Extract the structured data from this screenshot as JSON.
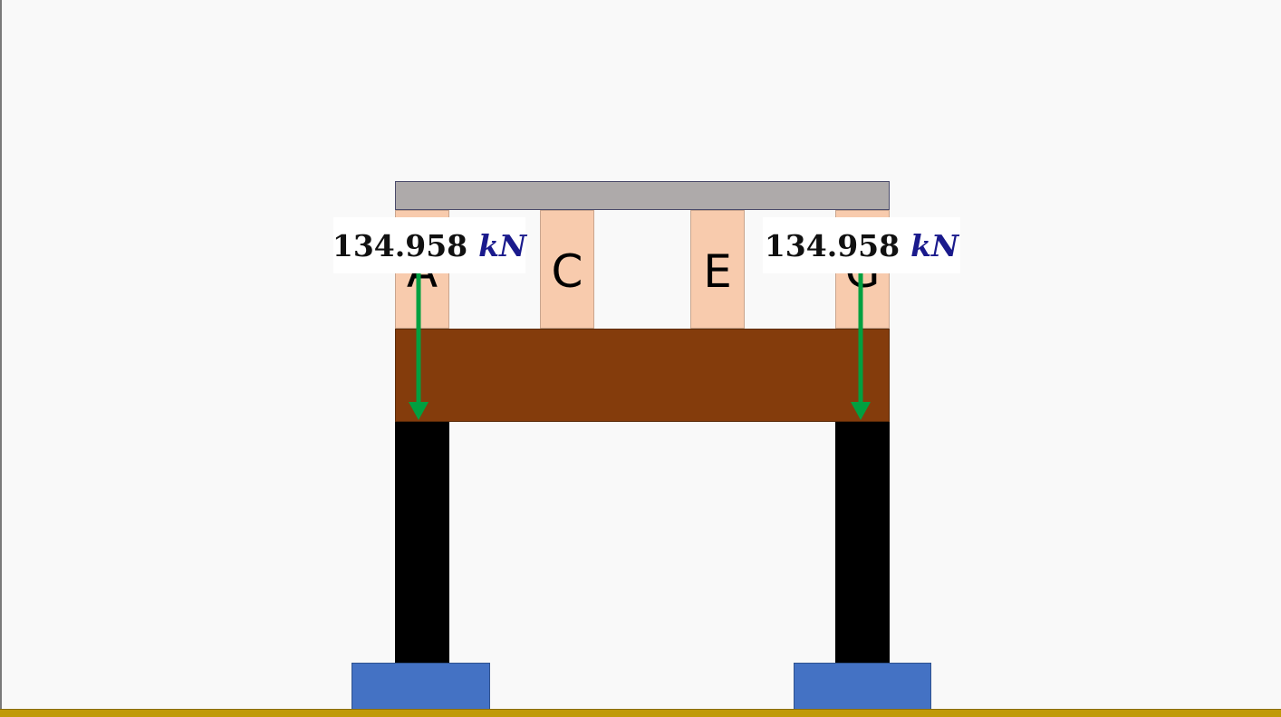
{
  "blocks": [
    {
      "label": "A"
    },
    {
      "label": "C"
    },
    {
      "label": "E"
    },
    {
      "label": "G"
    }
  ],
  "loads": [
    {
      "value": "134.958",
      "unit": "kN"
    },
    {
      "value": "134.958",
      "unit": "kN"
    }
  ],
  "colors": {
    "top_plate": "#aeaaaa",
    "block": "#f8cbad",
    "beam": "#843c0c",
    "column": "#000000",
    "footing": "#4472c4",
    "ground": "#c09a08",
    "arrow": "#00a040",
    "unit_text": "#1a1a8c"
  }
}
